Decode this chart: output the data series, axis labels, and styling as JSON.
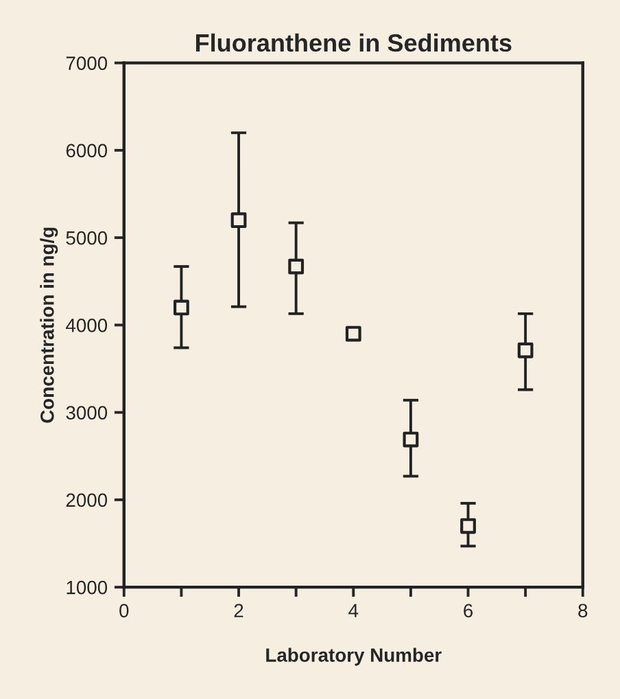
{
  "chart_data": {
    "type": "scatter",
    "title": "Fluoranthene in Sediments",
    "xlabel": "Laboratory Number",
    "ylabel": "Concentration in ng/g",
    "x": [
      1,
      2,
      3,
      4,
      5,
      6,
      7
    ],
    "series": [
      {
        "color": "#222222",
        "values": [
          4200,
          5200,
          4670,
          3900,
          2690,
          1700,
          3710
        ],
        "errors": [
          [
            3740,
            4670
          ],
          [
            4210,
            6200
          ],
          [
            4130,
            5170
          ],
          null,
          [
            2270,
            3140
          ],
          [
            1470,
            1960
          ],
          [
            3260,
            4130
          ]
        ]
      }
    ],
    "marker": "square",
    "xlim": [
      0,
      8
    ],
    "xticks": [
      0,
      {
        "value": 1,
        "label": null
      },
      2,
      {
        "value": 3,
        "label": null
      },
      4,
      {
        "value": 5,
        "label": null
      },
      6,
      {
        "value": 7,
        "label": null
      },
      8
    ],
    "ylim": [
      1000,
      7000
    ],
    "yticks": [
      1000,
      2000,
      3000,
      4000,
      5000,
      6000,
      7000
    ],
    "grid": false,
    "legend": false
  }
}
